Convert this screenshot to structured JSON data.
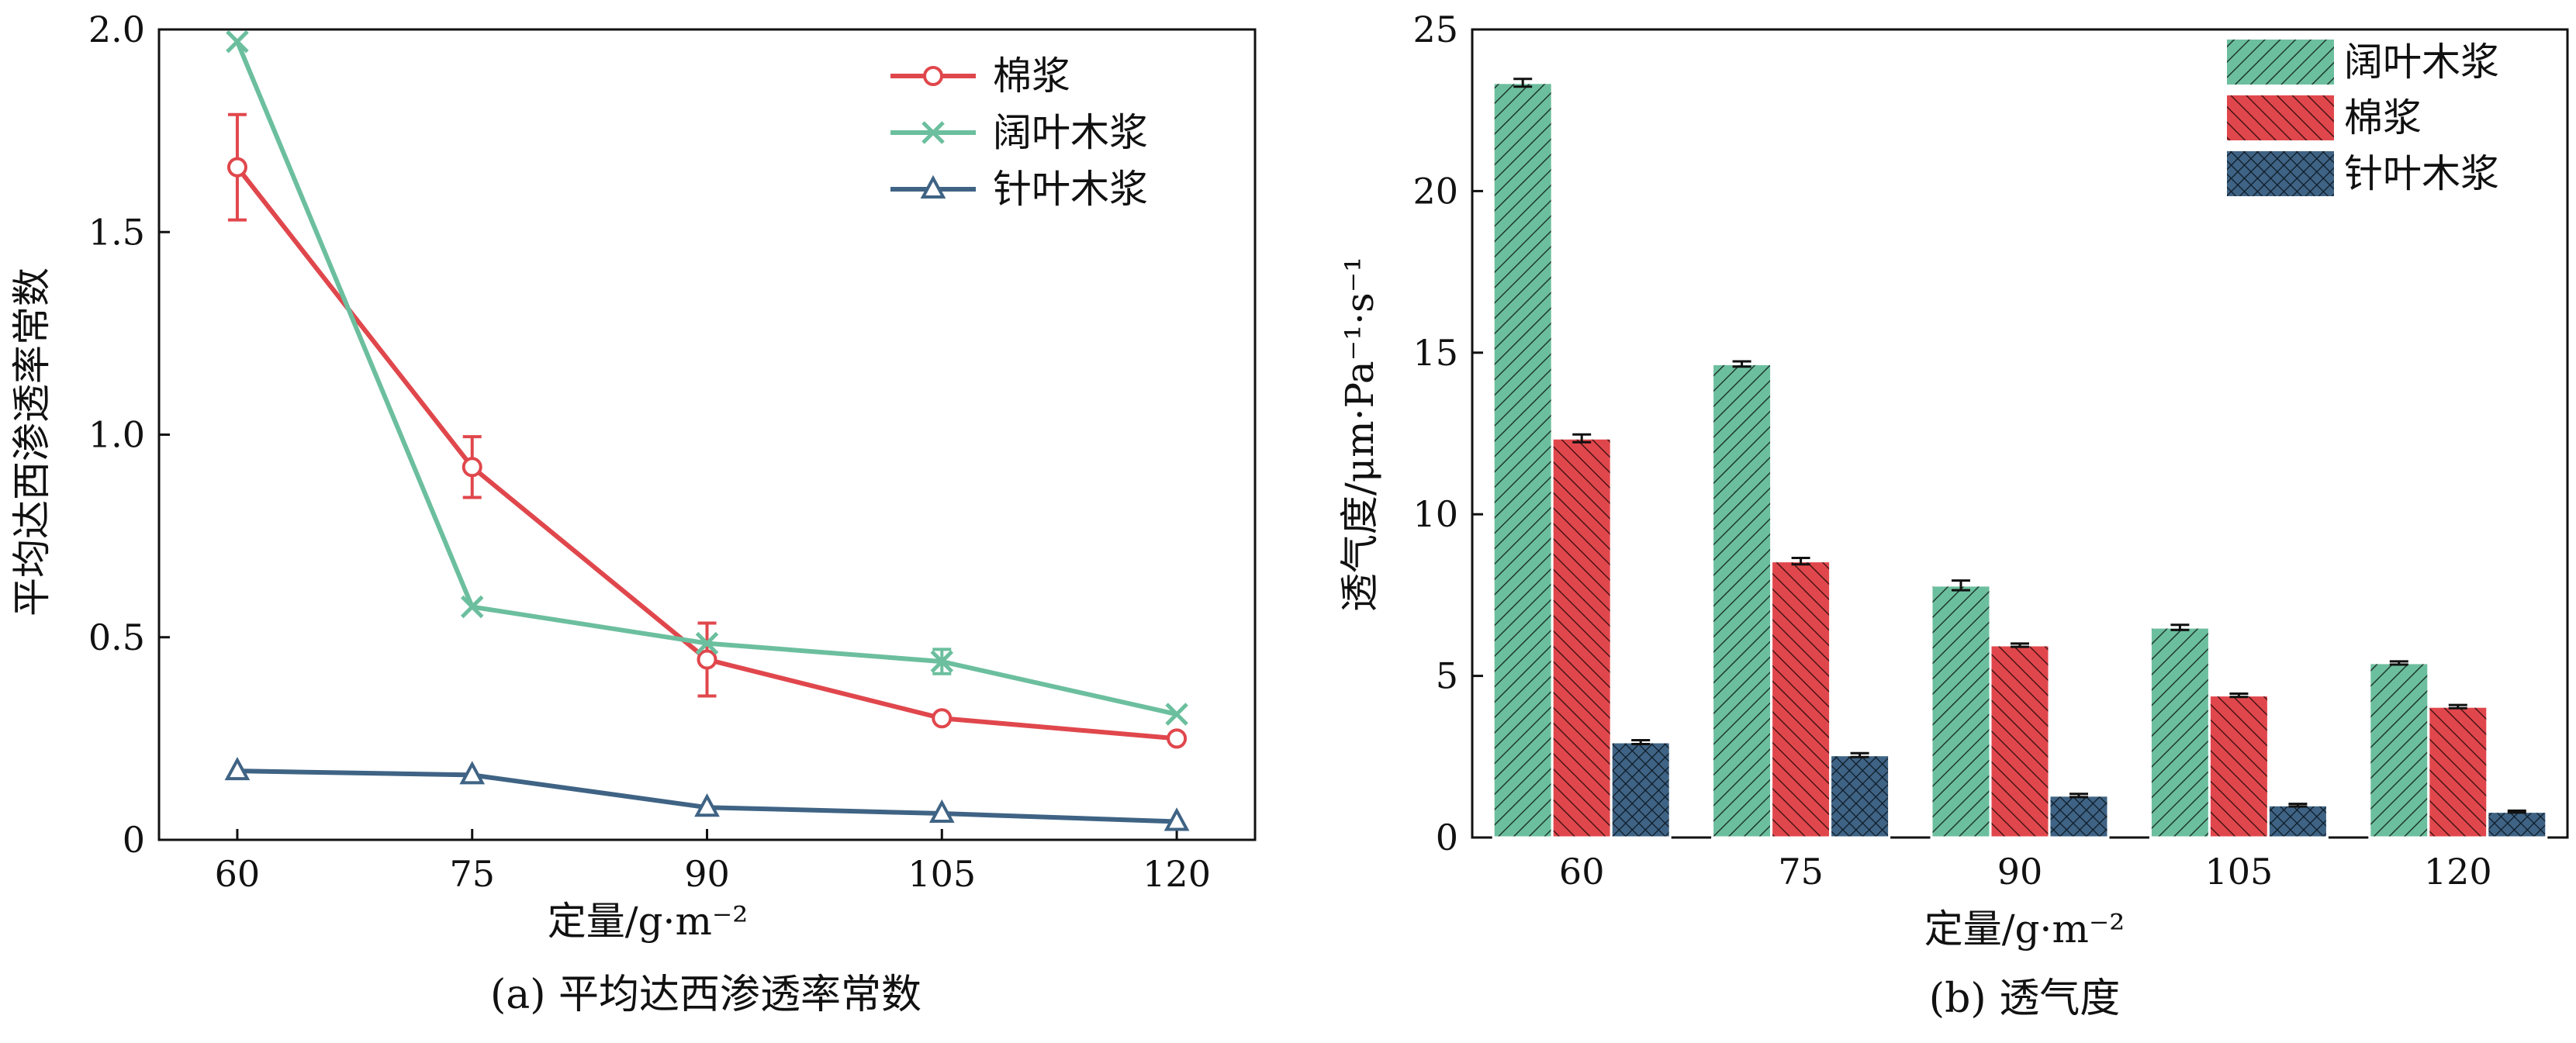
{
  "chart_data": [
    {
      "type": "line",
      "caption": "(a) 平均达西渗透率常数",
      "xlabel": "定量/g·m⁻²",
      "ylabel": "平均达西渗透率常数",
      "x": [
        60,
        75,
        90,
        105,
        120
      ],
      "xticks": [
        "60",
        "75",
        "90",
        "105",
        "120"
      ],
      "ylim": [
        0,
        2.0
      ],
      "yticks": [
        "0",
        "0.5",
        "1.0",
        "1.5",
        "2.0"
      ],
      "legend_position": "top-right",
      "series": [
        {
          "name": "棉浆",
          "values": [
            1.66,
            0.92,
            0.445,
            0.3,
            0.25
          ],
          "error": [
            0.13,
            0.075,
            0.09,
            0.0,
            0.0
          ],
          "color": "#e0474c",
          "marker": "circle"
        },
        {
          "name": "阔叶木浆",
          "values": [
            1.97,
            0.575,
            0.485,
            0.44,
            0.31
          ],
          "error": [
            0.0,
            0.0,
            0.0,
            0.03,
            0.0
          ],
          "color": "#6cbf9e",
          "marker": "x"
        },
        {
          "name": "针叶木浆",
          "values": [
            0.17,
            0.16,
            0.08,
            0.065,
            0.045
          ],
          "error": [
            0.0,
            0.0,
            0.0,
            0.0,
            0.0
          ],
          "color": "#3f6384",
          "marker": "triangle"
        }
      ]
    },
    {
      "type": "bar",
      "caption": "(b) 透气度",
      "xlabel": "定量/g·m⁻²",
      "ylabel": "透气度/μm·Pa⁻¹·s⁻¹",
      "categories": [
        "60",
        "75",
        "90",
        "105",
        "120"
      ],
      "ylim": [
        0,
        25
      ],
      "yticks": [
        "0",
        "5",
        "10",
        "15",
        "20",
        "25"
      ],
      "legend_position": "top-right",
      "series": [
        {
          "name": "阔叶木浆",
          "values": [
            23.35,
            14.65,
            7.8,
            6.5,
            5.4
          ],
          "error": [
            0.12,
            0.08,
            0.15,
            0.08,
            0.05
          ],
          "color": "#6cbf9e",
          "pattern": "diag-right"
        },
        {
          "name": "棉浆",
          "values": [
            12.35,
            8.55,
            5.95,
            4.4,
            4.05
          ],
          "error": [
            0.12,
            0.1,
            0.05,
            0.05,
            0.05
          ],
          "color": "#e0474c",
          "pattern": "diag-left"
        },
        {
          "name": "针叶木浆",
          "values": [
            2.95,
            2.55,
            1.3,
            1.0,
            0.8
          ],
          "error": [
            0.06,
            0.06,
            0.05,
            0.04,
            0.03
          ],
          "color": "#3f6384",
          "pattern": "cross"
        }
      ]
    }
  ]
}
